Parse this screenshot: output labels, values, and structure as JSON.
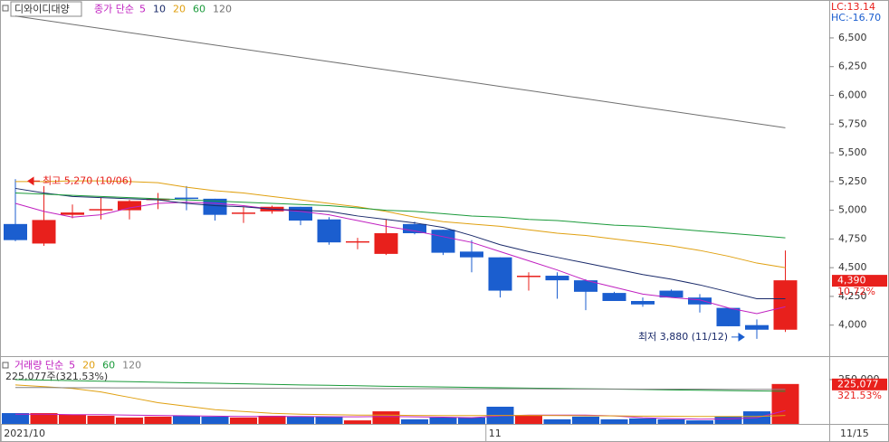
{
  "chart_data": [
    {
      "type": "candlestick",
      "title": "디와이디대양",
      "legend_title": "종가 단순",
      "lc_label": "LC:13.14",
      "hc_label": "HC:-16.70",
      "categories": [
        "2021/10",
        null,
        null,
        null,
        null,
        null,
        null,
        null,
        null,
        null,
        null,
        null,
        null,
        null,
        null,
        null,
        null,
        "11",
        null,
        null,
        null,
        null,
        null,
        null,
        null,
        null,
        null,
        null
      ],
      "end_label": "11/15",
      "open": [
        4880,
        4710,
        4960,
        5000,
        5000,
        5090,
        5110,
        5100,
        4970,
        4990,
        5030,
        4920,
        4720,
        4620,
        4880,
        4830,
        4640,
        4590,
        4420,
        4430,
        4390,
        4280,
        4210,
        4300,
        4240,
        4150,
        4000,
        3960
      ],
      "high": [
        5270,
        5210,
        5050,
        5110,
        5090,
        5150,
        5210,
        5100,
        5030,
        5040,
        5030,
        4940,
        4760,
        4920,
        4900,
        4830,
        4740,
        4590,
        4460,
        4460,
        4400,
        4290,
        4240,
        4310,
        4270,
        4150,
        4050,
        4650
      ],
      "low": [
        4730,
        4690,
        4930,
        4920,
        4920,
        5010,
        5000,
        4910,
        4890,
        4970,
        4870,
        4700,
        4660,
        4610,
        4790,
        4610,
        4460,
        4240,
        4300,
        4230,
        4130,
        4210,
        4160,
        4240,
        4110,
        3990,
        3880,
        3940
      ],
      "close": [
        4740,
        4915,
        4980,
        5010,
        5080,
        5100,
        5100,
        4960,
        4980,
        5030,
        4910,
        4720,
        4730,
        4800,
        4800,
        4630,
        4590,
        4300,
        4430,
        4390,
        4290,
        4210,
        4180,
        4240,
        4180,
        3990,
        3960,
        4390
      ],
      "up_color": "#e8201c",
      "down_color": "#1b5ecf",
      "series": [
        {
          "name": "5",
          "color": "#c020c0",
          "values": [
            5060,
            4990,
            4940,
            4960,
            5020,
            5060,
            5070,
            5060,
            5040,
            5010,
            4990,
            4960,
            4910,
            4860,
            4820,
            4770,
            4720,
            4640,
            4560,
            4480,
            4390,
            4330,
            4270,
            4240,
            4220,
            4150,
            4100,
            4160
          ]
        },
        {
          "name": "10",
          "color": "#1a2a6a",
          "values": [
            5190,
            5150,
            5120,
            5110,
            5100,
            5090,
            5060,
            5040,
            5030,
            5010,
            5000,
            4990,
            4950,
            4920,
            4890,
            4850,
            4780,
            4700,
            4640,
            4590,
            4540,
            4490,
            4440,
            4400,
            4350,
            4290,
            4230,
            4230
          ]
        },
        {
          "name": "20",
          "color": "#e0a010",
          "values": [
            5250,
            5250,
            5255,
            5255,
            5250,
            5240,
            5200,
            5170,
            5150,
            5120,
            5090,
            5060,
            5030,
            4990,
            4940,
            4900,
            4880,
            4860,
            4830,
            4800,
            4780,
            4750,
            4720,
            4690,
            4650,
            4600,
            4540,
            4500
          ]
        },
        {
          "name": "60",
          "color": "#1a9a3a",
          "values": [
            5150,
            5140,
            5130,
            5120,
            5110,
            5100,
            5090,
            5080,
            5070,
            5060,
            5050,
            5040,
            5020,
            5000,
            4990,
            4970,
            4950,
            4940,
            4920,
            4910,
            4890,
            4870,
            4860,
            4840,
            4820,
            4800,
            4780,
            4760
          ]
        },
        {
          "name": "120",
          "color": "#707070",
          "values": [
            6690,
            6654,
            6618,
            6582,
            6546,
            6510,
            6474,
            6438,
            6402,
            6366,
            6330,
            6294,
            6258,
            6222,
            6186,
            6150,
            6114,
            6078,
            6042,
            6006,
            5970,
            5934,
            5898,
            5862,
            5826,
            5790,
            5754,
            5718
          ]
        }
      ],
      "ylim": [
        3730,
        6830
      ],
      "yticks": [
        {
          "value": 4000,
          "label": "4,000"
        },
        {
          "value": 4250,
          "label": "4,250"
        },
        {
          "value": 4500,
          "label": "4,500"
        },
        {
          "value": 4750,
          "label": "4,750"
        },
        {
          "value": 5000,
          "label": "5,000"
        },
        {
          "value": 5250,
          "label": "5,250"
        },
        {
          "value": 5500,
          "label": "5,500"
        },
        {
          "value": 5750,
          "label": "5,750"
        },
        {
          "value": 6000,
          "label": "6,000"
        },
        {
          "value": 6250,
          "label": "6,250"
        },
        {
          "value": 6500,
          "label": "6,500"
        }
      ],
      "high_label": "최고 5,270 (10/06)",
      "low_label": "최저 3,880 (11/12)",
      "last_label": "4,390",
      "change_label": "10.72%"
    },
    {
      "type": "bar",
      "legend_title": "거래량 단순",
      "values": [
        61000,
        61000,
        51000,
        46000,
        36000,
        41000,
        46000,
        41000,
        36000,
        46000,
        41000,
        41000,
        20000,
        71000,
        26000,
        36000,
        36000,
        97000,
        46000,
        26000,
        41000,
        26000,
        31000,
        26000,
        20000,
        41000,
        71000,
        225077
      ],
      "series": [
        {
          "name": "5",
          "color": "#c020c0",
          "values": [
            55000,
            55000,
            52000,
            52000,
            50000,
            48000,
            46000,
            44000,
            42000,
            42000,
            42000,
            41000,
            40000,
            42000,
            40000,
            38000,
            35000,
            45000,
            50000,
            50000,
            50000,
            45000,
            35000,
            30000,
            27000,
            28000,
            35000,
            75000
          ]
        },
        {
          "name": "20",
          "color": "#e0a010",
          "values": [
            220000,
            210000,
            200000,
            180000,
            150000,
            120000,
            100000,
            80000,
            70000,
            60000,
            55000,
            52000,
            50000,
            50000,
            48000,
            47000,
            47000,
            48000,
            48000,
            47000,
            46000,
            45000,
            44000,
            43000,
            42000,
            42000,
            42000,
            48000
          ]
        },
        {
          "name": "60",
          "color": "#1a9a3a",
          "values": [
            250000,
            247000,
            244000,
            241000,
            238000,
            235000,
            232000,
            229000,
            226000,
            223000,
            220000,
            218000,
            215000,
            212000,
            210000,
            208000,
            206000,
            204000,
            202000,
            200000,
            198000,
            196000,
            194000,
            192000,
            190000,
            188000,
            186000,
            184000
          ]
        },
        {
          "name": "120",
          "color": "#808080",
          "values": [
            205000,
            205000,
            204000,
            204000,
            203000,
            203000,
            202000,
            202000,
            201000,
            201000,
            200000,
            200000,
            200000,
            199000,
            199000,
            199000,
            198000,
            198000,
            198000,
            197000,
            197000,
            197000,
            196000,
            196000,
            196000,
            195000,
            195000,
            195000
          ]
        }
      ],
      "ylim": [
        0,
        372000
      ],
      "yticks": [
        {
          "value": 250000,
          "label": "250,000"
        }
      ],
      "summary_label": "225,077주(321.53%)",
      "last_label": "225,077",
      "change_label": "321.53%"
    }
  ]
}
